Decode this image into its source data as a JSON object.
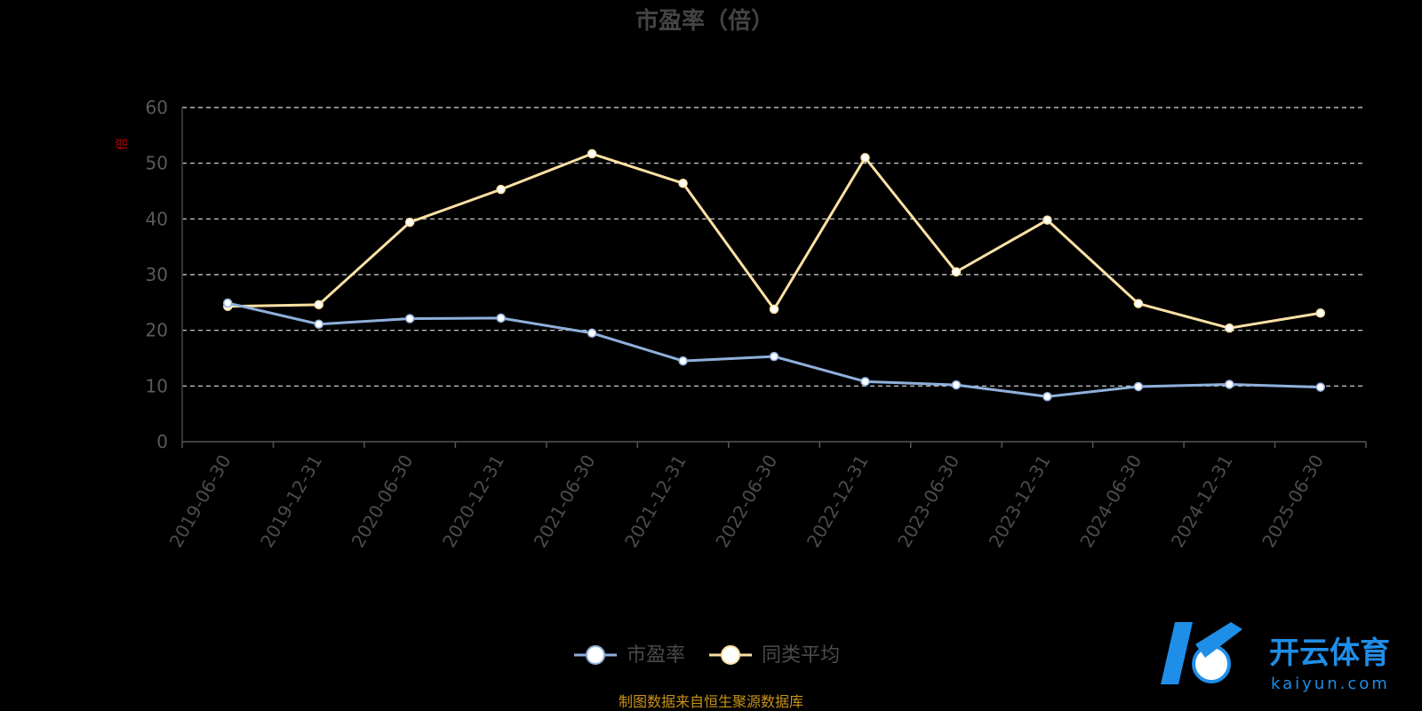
{
  "chart_data": {
    "type": "line",
    "title": "市盈率（倍）",
    "ylabel": "倍",
    "ylim": [
      0,
      60
    ],
    "yticks": [
      0,
      10,
      20,
      30,
      40,
      50,
      60
    ],
    "grid": true,
    "legend_position": "bottom-center",
    "categories": [
      "2019-06-30",
      "2019-12-31",
      "2020-06-30",
      "2020-12-31",
      "2021-06-30",
      "2021-12-31",
      "2022-06-30",
      "2022-12-31",
      "2023-06-30",
      "2023-12-31",
      "2024-06-30",
      "2024-12-31",
      "2025-06-30"
    ],
    "series": [
      {
        "name": "市盈率",
        "color": "#8fb0dc",
        "values": [
          24.9,
          21.1,
          22.1,
          22.2,
          19.5,
          14.5,
          15.3,
          10.8,
          10.2,
          8.1,
          9.9,
          10.3,
          9.8
        ]
      },
      {
        "name": "同类平均",
        "color": "#fde1a5",
        "values": [
          24.3,
          24.6,
          39.4,
          45.3,
          51.7,
          46.4,
          23.8,
          51.0,
          30.5,
          39.8,
          24.8,
          20.4,
          23.1
        ]
      }
    ]
  },
  "source_note": "制图数据来自恒生聚源数据库",
  "watermark": {
    "cn": "开云体育",
    "en": "kaiyun.com",
    "color": "#1f8ee8"
  }
}
